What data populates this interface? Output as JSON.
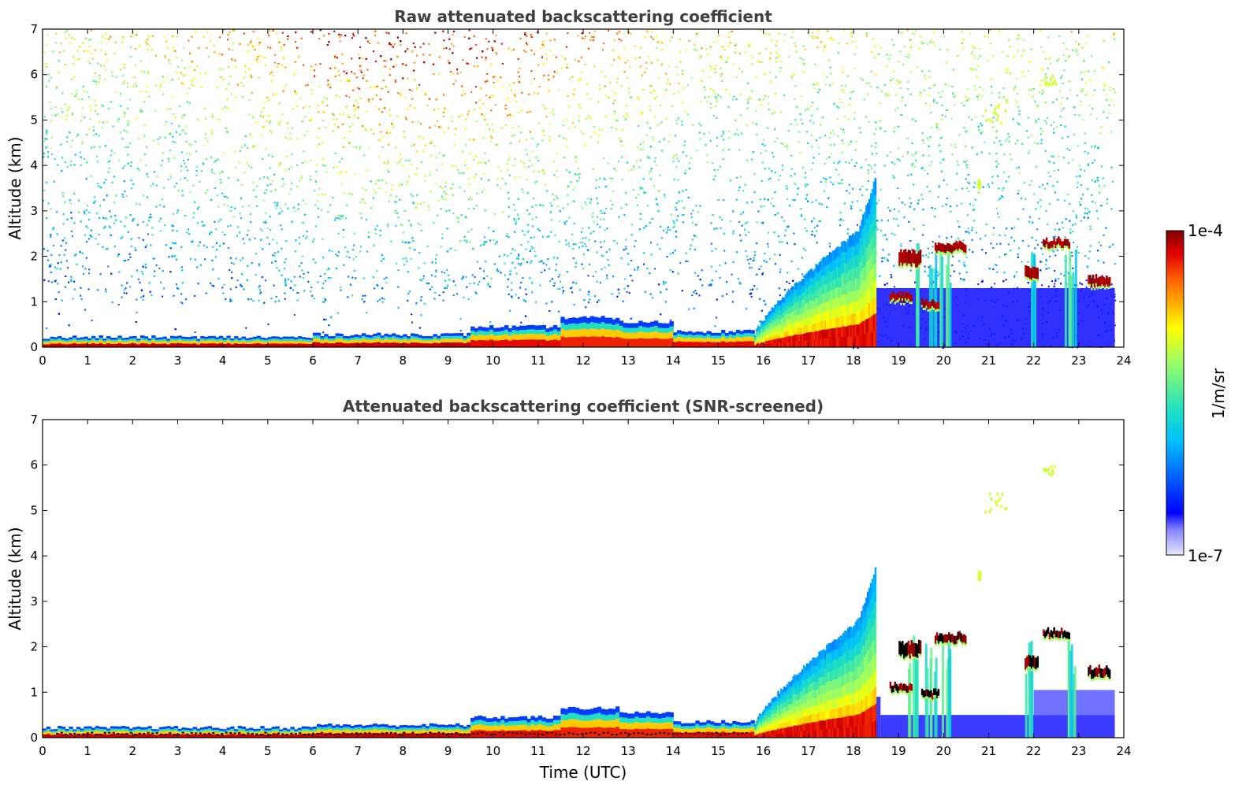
{
  "chart_data": [
    {
      "type": "heatmap",
      "title": "Raw attenuated backscattering coefficient",
      "xlabel": "",
      "ylabel": "Altitude (km)",
      "xlim": [
        0,
        24
      ],
      "ylim": [
        0,
        7
      ],
      "x_ticks": [
        "0",
        "1",
        "2",
        "3",
        "4",
        "5",
        "6",
        "7",
        "8",
        "9",
        "10",
        "11",
        "12",
        "13",
        "14",
        "15",
        "16",
        "17",
        "18",
        "19",
        "20",
        "21",
        "22",
        "23",
        "24"
      ],
      "y_ticks": [
        "0",
        "1",
        "2",
        "3",
        "4",
        "5",
        "6",
        "7"
      ],
      "screened": false
    },
    {
      "type": "heatmap",
      "title": "Attenuated backscattering coefficient (SNR-screened)",
      "xlabel": "Time (UTC)",
      "ylabel": "Altitude (km)",
      "xlim": [
        0,
        24
      ],
      "ylim": [
        0,
        7
      ],
      "x_ticks": [
        "0",
        "1",
        "2",
        "3",
        "4",
        "5",
        "6",
        "7",
        "8",
        "9",
        "10",
        "11",
        "12",
        "13",
        "14",
        "15",
        "16",
        "17",
        "18",
        "19",
        "20",
        "21",
        "22",
        "23",
        "24"
      ],
      "y_ticks": [
        "0",
        "1",
        "2",
        "3",
        "4",
        "5",
        "6",
        "7"
      ],
      "screened": true
    }
  ],
  "colorbar": {
    "label": "1/m/sr",
    "max_label": "1e-4",
    "min_label": "1e-7",
    "scale": "log",
    "range": [
      1e-07,
      0.0001
    ],
    "colormap": "jet"
  },
  "features": {
    "surface_layer": [
      {
        "t0": 0,
        "t1": 6,
        "top": 0.22,
        "level": 0.95
      },
      {
        "t0": 6,
        "t1": 9.5,
        "top": 0.28,
        "level": 0.95
      },
      {
        "t0": 9.5,
        "t1": 11.5,
        "top": 0.45,
        "level": 0.92
      },
      {
        "t0": 11.5,
        "t1": 12.8,
        "top": 0.65,
        "level": 0.9
      },
      {
        "t0": 12.8,
        "t1": 14.0,
        "top": 0.55,
        "level": 0.9
      },
      {
        "t0": 14.0,
        "t1": 15.8,
        "top": 0.35,
        "level": 0.92
      }
    ],
    "boundary_layer_growth": {
      "t0": 15.8,
      "t1": 18.5,
      "top_start": 0.3,
      "top_end": 2.9,
      "peak_top": 3.8,
      "level": 0.85
    },
    "clouds": [
      {
        "t0": 19.0,
        "t1": 19.5,
        "alt": 1.95,
        "thick": 0.3
      },
      {
        "t0": 19.8,
        "t1": 20.5,
        "alt": 2.2,
        "thick": 0.18
      },
      {
        "t0": 21.8,
        "t1": 22.1,
        "alt": 1.65,
        "thick": 0.25
      },
      {
        "t0": 22.2,
        "t1": 22.8,
        "alt": 2.3,
        "thick": 0.15
      },
      {
        "t0": 23.2,
        "t1": 23.7,
        "alt": 1.45,
        "thick": 0.2
      },
      {
        "t0": 18.8,
        "t1": 19.3,
        "alt": 1.1,
        "thick": 0.15
      },
      {
        "t0": 19.5,
        "t1": 19.9,
        "alt": 0.95,
        "thick": 0.15
      }
    ],
    "precip_shafts": [
      19.3,
      19.7,
      20.0,
      21.9,
      22.8
    ],
    "high_cloud": [
      {
        "t0": 20.9,
        "t1": 21.4,
        "alt": 5.2,
        "thick": 0.5
      },
      {
        "t0": 22.2,
        "t1": 22.5,
        "alt": 5.9,
        "thick": 0.2
      },
      {
        "t0": 20.75,
        "t1": 20.8,
        "alt": 3.6,
        "thick": 0.2
      }
    ],
    "data_end_time": 23.8
  }
}
